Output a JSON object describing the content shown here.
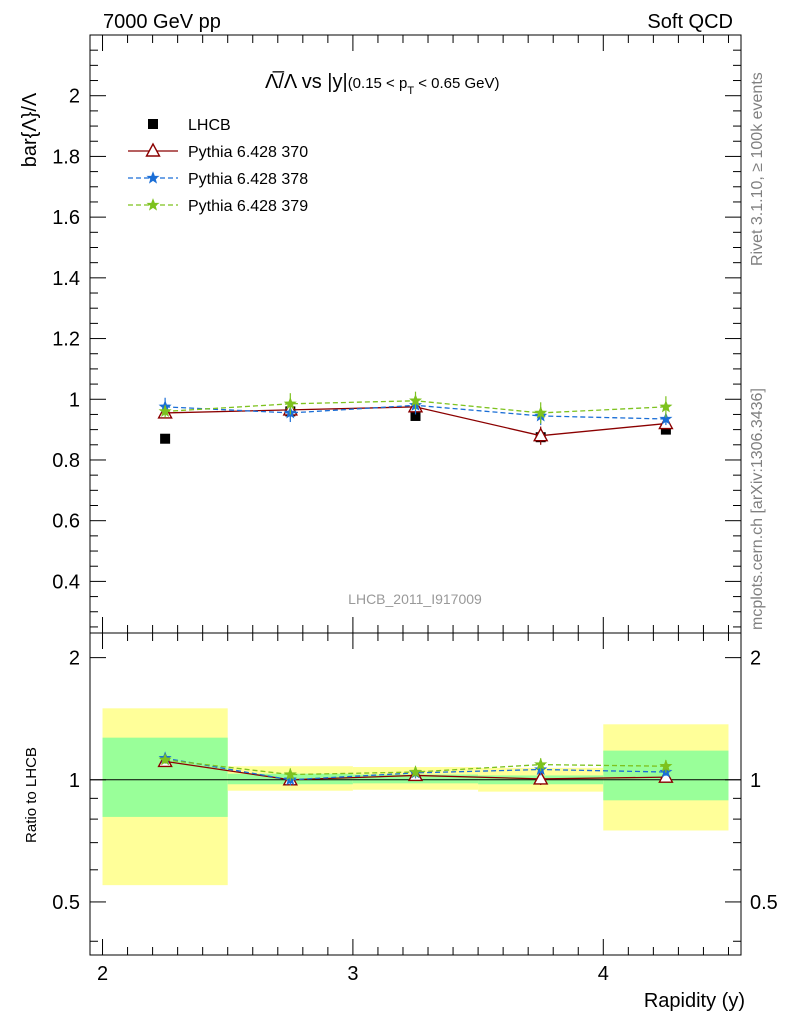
{
  "header": {
    "left": "7000 GeV pp",
    "right": "Soft QCD"
  },
  "side_labels": {
    "rivet": "Rivet 3.1.10, ≥ 100k events",
    "mcplots": "mcplots.cern.ch [arXiv:1306.3436]"
  },
  "chart_data": {
    "type": "scatter",
    "title_main": "Λ̅/Λ vs |y|",
    "title_sub": "(0.15 < p",
    "title_sub_T": "T",
    "title_sub_end": " < 0.65 GeV)",
    "watermark": "LHCB_2011_I917009",
    "xlabel": "Rapidity (y)",
    "ylabel": "bar{Λ}/Λ",
    "ratio_ylabel": "Ratio to LHCB",
    "xlim": [
      1.95,
      4.55
    ],
    "ylim": [
      0.23,
      2.2
    ],
    "ratio_ylim": [
      0.37,
      2.3
    ],
    "x_ticks": [
      "2",
      "3",
      "4"
    ],
    "y_ticks": [
      "0.4",
      "0.6",
      "0.8",
      "1",
      "1.2",
      "1.4",
      "1.6",
      "1.8",
      "2"
    ],
    "ratio_ticks": [
      "0.5",
      "1",
      "2"
    ],
    "legend": [
      {
        "label": "LHCB",
        "color": "#000000",
        "marker": "square"
      },
      {
        "label": "Pythia 6.428 370",
        "color": "#8b0000",
        "marker": "triangle"
      },
      {
        "label": "Pythia 6.428 378",
        "color": "#1a6ed6",
        "marker": "star"
      },
      {
        "label": "Pythia 6.428 379",
        "color": "#7dc21e",
        "marker": "star"
      }
    ],
    "bins": [
      [
        2.0,
        2.5
      ],
      [
        2.5,
        3.0
      ],
      [
        3.0,
        3.5
      ],
      [
        3.5,
        4.0
      ],
      [
        4.0,
        4.5
      ]
    ],
    "x": [
      2.25,
      2.75,
      3.25,
      3.75,
      4.25
    ],
    "lhcb": [
      0.87,
      0.96,
      0.945,
      0.875,
      0.9
    ],
    "band_inner": [
      [
        0.81,
        1.27
      ],
      [
        0.975,
        1.035
      ],
      [
        0.98,
        1.03
      ],
      [
        0.975,
        1.025
      ],
      [
        0.89,
        1.18
      ]
    ],
    "band_outer": [
      [
        0.55,
        1.5
      ],
      [
        0.94,
        1.08
      ],
      [
        0.945,
        1.075
      ],
      [
        0.935,
        1.07
      ],
      [
        0.75,
        1.37
      ]
    ],
    "series": [
      {
        "name": "Pythia 6.428 370",
        "color": "#8b0000",
        "marker": "triangle",
        "dashed": false,
        "values": [
          0.955,
          0.965,
          0.975,
          0.88,
          0.92
        ],
        "err": [
          0.012,
          0.012,
          0.012,
          0.03,
          0.012
        ],
        "ratio": [
          1.11,
          1.0,
          1.025,
          1.005,
          1.015
        ]
      },
      {
        "name": "Pythia 6.428 378",
        "color": "#1a6ed6",
        "marker": "star",
        "dashed": true,
        "values": [
          0.975,
          0.955,
          0.98,
          0.945,
          0.935
        ],
        "err": [
          0.03,
          0.03,
          0.03,
          0.03,
          0.02
        ],
        "ratio": [
          1.13,
          1.0,
          1.04,
          1.06,
          1.045
        ]
      },
      {
        "name": "Pythia 6.428 379",
        "color": "#7dc21e",
        "marker": "star",
        "dashed": true,
        "values": [
          0.96,
          0.985,
          0.995,
          0.955,
          0.975
        ],
        "err": [
          0.02,
          0.035,
          0.03,
          0.035,
          0.035
        ],
        "ratio": [
          1.12,
          1.03,
          1.045,
          1.09,
          1.08
        ]
      }
    ]
  }
}
